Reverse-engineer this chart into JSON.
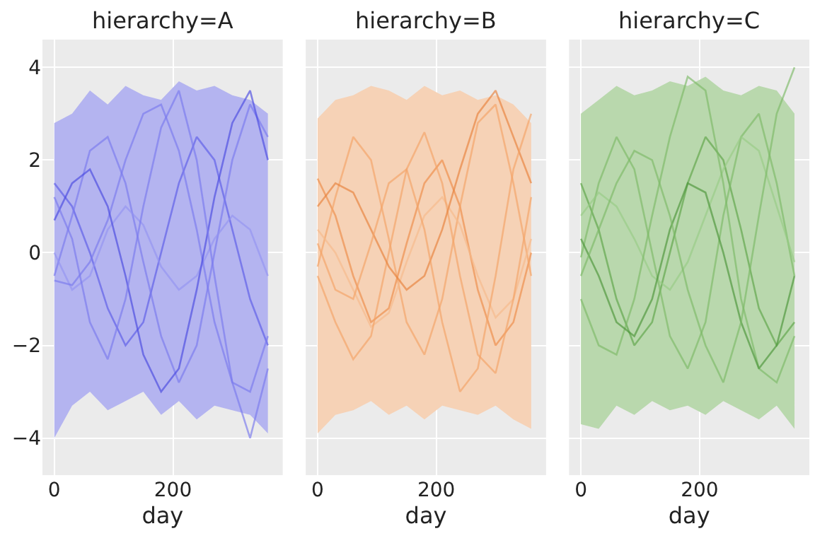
{
  "chart_data": [
    {
      "type": "line",
      "title": "hierarchy=A",
      "xlabel": "day",
      "x": [
        0,
        30,
        60,
        90,
        120,
        150,
        180,
        210,
        240,
        270,
        300,
        330,
        360
      ],
      "xlim": [
        -20,
        385
      ],
      "xticks": [
        0,
        200
      ],
      "ylim": [
        -4.8,
        4.6
      ],
      "yticks": [
        -4,
        -2,
        0,
        2,
        4
      ],
      "grid": true,
      "series": [
        {
          "type": "area",
          "color": "#b4b4f0",
          "values": [
            null,
            null,
            null,
            null,
            null,
            null,
            null,
            null,
            null,
            null,
            null,
            null,
            null
          ],
          "lower": [
            -4.0,
            -3.3,
            -3.0,
            -3.4,
            -3.2,
            -3.0,
            -3.5,
            -3.2,
            -3.6,
            -3.3,
            -3.4,
            -3.5,
            -3.9
          ],
          "upper": [
            2.8,
            3.0,
            3.5,
            3.2,
            3.6,
            3.4,
            3.3,
            3.7,
            3.5,
            3.6,
            3.4,
            3.3,
            3.0
          ]
        },
        {
          "color": "#5c5ce8",
          "values": [
            1.5,
            1.0,
            0.0,
            -1.2,
            -2.0,
            -1.5,
            0.0,
            1.5,
            2.5,
            2.0,
            0.5,
            -1.0,
            -2.0
          ]
        },
        {
          "color": "#7a7aee",
          "values": [
            -0.5,
            0.8,
            2.2,
            2.5,
            1.5,
            -0.2,
            -1.8,
            -2.8,
            -2.0,
            0.0,
            2.0,
            3.2,
            2.5
          ]
        },
        {
          "color": "#9494f2",
          "values": [
            0.0,
            -0.8,
            -0.5,
            0.5,
            1.0,
            0.6,
            -0.3,
            -0.8,
            -0.5,
            0.3,
            0.8,
            0.5,
            -0.5
          ]
        },
        {
          "color": "#7a7aee",
          "values": [
            -0.6,
            -0.7,
            -0.2,
            0.7,
            2.0,
            3.0,
            3.2,
            2.2,
            0.5,
            -1.5,
            -2.8,
            -3.0,
            -1.8
          ]
        },
        {
          "color": "#4a4ae0",
          "values": [
            0.7,
            1.5,
            1.8,
            1.0,
            -0.5,
            -2.2,
            -3.0,
            -2.5,
            -0.8,
            1.2,
            2.8,
            3.5,
            2.0
          ]
        },
        {
          "color": "#7a7aee",
          "values": [
            1.2,
            0.3,
            -1.5,
            -2.3,
            -1.0,
            1.0,
            2.7,
            3.5,
            2.0,
            -0.5,
            -2.8,
            -4.0,
            -2.5
          ]
        }
      ]
    },
    {
      "type": "line",
      "title": "hierarchy=B",
      "xlabel": "day",
      "x": [
        0,
        30,
        60,
        90,
        120,
        150,
        180,
        210,
        240,
        270,
        300,
        330,
        360
      ],
      "xlim": [
        -20,
        385
      ],
      "xticks": [
        0,
        200
      ],
      "ylim": [
        -4.8,
        4.6
      ],
      "tick_labels": "x",
      "grid": true,
      "series": [
        {
          "type": "area",
          "color": "#f6d2b6",
          "values": [
            null,
            null,
            null,
            null,
            null,
            null,
            null,
            null,
            null,
            null,
            null,
            null,
            null
          ],
          "lower": [
            -3.9,
            -3.5,
            -3.4,
            -3.2,
            -3.5,
            -3.3,
            -3.6,
            -3.3,
            -3.4,
            -3.5,
            -3.3,
            -3.6,
            -3.8
          ],
          "upper": [
            2.9,
            3.3,
            3.4,
            3.6,
            3.5,
            3.3,
            3.6,
            3.4,
            3.5,
            3.3,
            3.4,
            3.2,
            2.8
          ]
        },
        {
          "color": "#ee8c48",
          "values": [
            1.6,
            0.8,
            -0.5,
            -1.5,
            -1.2,
            0.2,
            1.5,
            2.0,
            1.0,
            -0.8,
            -2.0,
            -1.5,
            0.0
          ]
        },
        {
          "color": "#f4a467",
          "values": [
            -0.3,
            1.2,
            2.5,
            2.0,
            0.3,
            -1.5,
            -2.2,
            -1.0,
            1.0,
            2.8,
            3.2,
            1.5,
            -0.5
          ]
        },
        {
          "color": "#f7bb8c",
          "values": [
            0.5,
            0.0,
            -0.8,
            -1.6,
            -1.3,
            -0.2,
            0.8,
            1.2,
            0.6,
            -0.5,
            -1.4,
            -1.0,
            0.3
          ]
        },
        {
          "color": "#f4a467",
          "values": [
            -0.5,
            -1.5,
            -2.3,
            -1.8,
            0.0,
            1.8,
            2.6,
            1.5,
            -0.5,
            -2.2,
            -2.6,
            -1.0,
            1.2
          ]
        },
        {
          "color": "#e8823c",
          "values": [
            1.0,
            1.5,
            1.3,
            0.5,
            -0.3,
            -0.8,
            -0.5,
            0.5,
            1.8,
            3.0,
            3.5,
            2.5,
            1.5
          ]
        },
        {
          "color": "#f4a467",
          "values": [
            0.2,
            -0.8,
            -1.0,
            0.2,
            1.5,
            1.8,
            0.5,
            -1.5,
            -3.0,
            -2.5,
            -0.5,
            1.8,
            3.0
          ]
        }
      ]
    },
    {
      "type": "line",
      "title": "hierarchy=C",
      "xlabel": "day",
      "x": [
        0,
        30,
        60,
        90,
        120,
        150,
        180,
        210,
        240,
        270,
        300,
        330,
        360
      ],
      "xlim": [
        -20,
        385
      ],
      "xticks": [
        0,
        200
      ],
      "ylim": [
        -4.8,
        4.6
      ],
      "tick_labels": "x",
      "grid": true,
      "series": [
        {
          "type": "area",
          "color": "#b9d8ad",
          "values": [
            null,
            null,
            null,
            null,
            null,
            null,
            null,
            null,
            null,
            null,
            null,
            null,
            null
          ],
          "lower": [
            -3.7,
            -3.8,
            -3.3,
            -3.5,
            -3.2,
            -3.4,
            -3.3,
            -3.5,
            -3.2,
            -3.4,
            -3.6,
            -3.3,
            -3.8
          ],
          "upper": [
            3.0,
            3.3,
            3.6,
            3.4,
            3.5,
            3.7,
            3.6,
            3.8,
            3.5,
            3.4,
            3.6,
            3.5,
            3.0
          ]
        },
        {
          "color": "#5ea548",
          "values": [
            1.5,
            0.5,
            -1.0,
            -2.0,
            -1.5,
            0.0,
            1.5,
            2.5,
            2.0,
            0.5,
            -1.2,
            -2.0,
            -1.5
          ]
        },
        {
          "color": "#7dba68",
          "values": [
            -0.1,
            1.5,
            2.5,
            1.8,
            0.0,
            -1.8,
            -2.5,
            -1.5,
            0.8,
            2.5,
            3.0,
            1.5,
            -0.5
          ]
        },
        {
          "color": "#98cc86",
          "values": [
            0.8,
            1.3,
            1.0,
            0.3,
            -0.5,
            -0.8,
            -0.2,
            0.8,
            1.8,
            2.5,
            2.2,
            1.0,
            -0.2
          ]
        },
        {
          "color": "#7dba68",
          "values": [
            -1.0,
            -2.0,
            -2.2,
            -1.0,
            0.8,
            2.5,
            3.8,
            3.5,
            1.5,
            -1.0,
            -2.5,
            -2.8,
            -1.8
          ]
        },
        {
          "color": "#4c963a",
          "values": [
            0.3,
            -0.5,
            -1.5,
            -1.8,
            -1.0,
            0.5,
            1.5,
            1.3,
            0.0,
            -1.5,
            -2.5,
            -2.0,
            -0.5
          ]
        },
        {
          "color": "#7dba68",
          "values": [
            -0.5,
            0.5,
            1.5,
            2.2,
            2.0,
            0.8,
            -0.8,
            -2.0,
            -2.8,
            -1.5,
            0.8,
            3.0,
            4.0
          ]
        }
      ]
    }
  ]
}
